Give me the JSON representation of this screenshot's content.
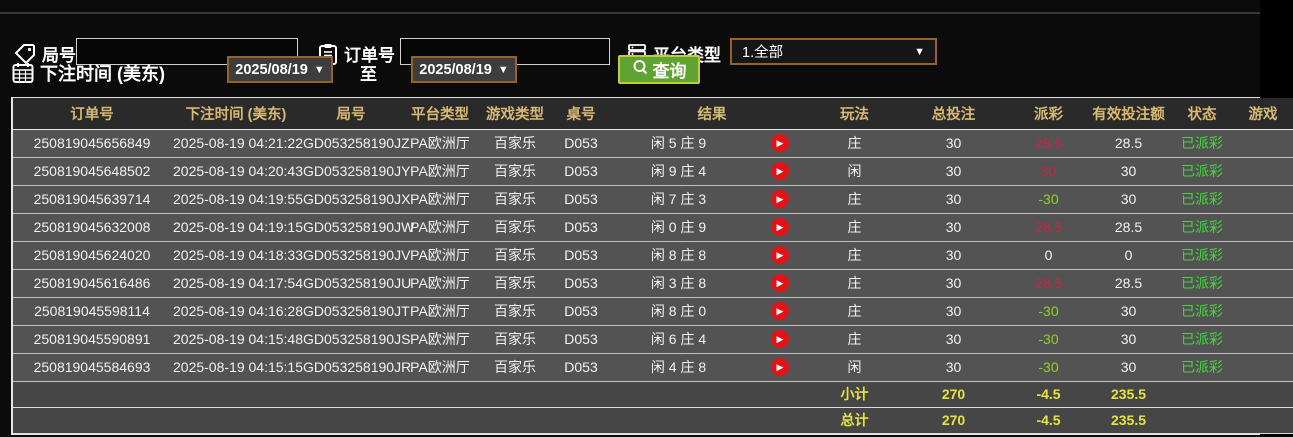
{
  "filters": {
    "game_no_label": "局号",
    "order_no_label": "订单号",
    "order_no_value": "",
    "game_no_value": "",
    "platform_label": "平台类型",
    "platform_value": "1.全部",
    "bet_time_label": "下注时间 (美东)",
    "date_from": "2025/08/19",
    "to_label": "至",
    "date_to": "2025/08/19",
    "query_label": "查询"
  },
  "table": {
    "headers": [
      "订单号",
      "下注时间 (美东)",
      "局号",
      "平台类型",
      "游戏类型",
      "桌号",
      "结果",
      "玩法",
      "总投注",
      "派彩",
      "有效投注额",
      "状态",
      "游戏"
    ],
    "rows": [
      {
        "order_no": "250819045656849",
        "bet_time": "2025-08-19 04:21:22",
        "game_no": "GD053258190JZ",
        "platform": "PA欧洲厅",
        "game_type": "百家乐",
        "table_no": "D053",
        "result": "闲 5 庄 9",
        "play": "庄",
        "total_bet": "30",
        "payout": "28.5",
        "valid_bet": "28.5",
        "status": "已派彩"
      },
      {
        "order_no": "250819045648502",
        "bet_time": "2025-08-19 04:20:43",
        "game_no": "GD053258190JY",
        "platform": "PA欧洲厅",
        "game_type": "百家乐",
        "table_no": "D053",
        "result": "闲 9 庄 4",
        "play": "闲",
        "total_bet": "30",
        "payout": "30",
        "valid_bet": "30",
        "status": "已派彩"
      },
      {
        "order_no": "250819045639714",
        "bet_time": "2025-08-19 04:19:55",
        "game_no": "GD053258190JX",
        "platform": "PA欧洲厅",
        "game_type": "百家乐",
        "table_no": "D053",
        "result": "闲 7 庄 3",
        "play": "庄",
        "total_bet": "30",
        "payout": "-30",
        "valid_bet": "30",
        "status": "已派彩"
      },
      {
        "order_no": "250819045632008",
        "bet_time": "2025-08-19 04:19:15",
        "game_no": "GD053258190JW",
        "platform": "PA欧洲厅",
        "game_type": "百家乐",
        "table_no": "D053",
        "result": "闲 0 庄 9",
        "play": "庄",
        "total_bet": "30",
        "payout": "28.5",
        "valid_bet": "28.5",
        "status": "已派彩"
      },
      {
        "order_no": "250819045624020",
        "bet_time": "2025-08-19 04:18:33",
        "game_no": "GD053258190JV",
        "platform": "PA欧洲厅",
        "game_type": "百家乐",
        "table_no": "D053",
        "result": "闲 8 庄 8",
        "play": "庄",
        "total_bet": "30",
        "payout": "0",
        "valid_bet": "0",
        "status": "已派彩"
      },
      {
        "order_no": "250819045616486",
        "bet_time": "2025-08-19 04:17:54",
        "game_no": "GD053258190JU",
        "platform": "PA欧洲厅",
        "game_type": "百家乐",
        "table_no": "D053",
        "result": "闲 3 庄 8",
        "play": "庄",
        "total_bet": "30",
        "payout": "28.5",
        "valid_bet": "28.5",
        "status": "已派彩"
      },
      {
        "order_no": "250819045598114",
        "bet_time": "2025-08-19 04:16:28",
        "game_no": "GD053258190JT",
        "platform": "PA欧洲厅",
        "game_type": "百家乐",
        "table_no": "D053",
        "result": "闲 8 庄 0",
        "play": "庄",
        "total_bet": "30",
        "payout": "-30",
        "valid_bet": "30",
        "status": "已派彩"
      },
      {
        "order_no": "250819045590891",
        "bet_time": "2025-08-19 04:15:48",
        "game_no": "GD053258190JS",
        "platform": "PA欧洲厅",
        "game_type": "百家乐",
        "table_no": "D053",
        "result": "闲 6 庄 4",
        "play": "庄",
        "total_bet": "30",
        "payout": "-30",
        "valid_bet": "30",
        "status": "已派彩"
      },
      {
        "order_no": "250819045584693",
        "bet_time": "2025-08-19 04:15:15",
        "game_no": "GD053258190JR",
        "platform": "PA欧洲厅",
        "game_type": "百家乐",
        "table_no": "D053",
        "result": "闲 4 庄 8",
        "play": "闲",
        "total_bet": "30",
        "payout": "-30",
        "valid_bet": "30",
        "status": "已派彩"
      }
    ],
    "subtotal": {
      "label": "小计",
      "total_bet": "270",
      "payout": "-4.5",
      "valid_bet": "235.5"
    },
    "total": {
      "label": "总计",
      "total_bet": "270",
      "payout": "-4.5",
      "valid_bet": "235.5"
    }
  },
  "colors": {
    "header_gold": "#d8b974",
    "row_bg": "#535353",
    "summary_yellow": "#e8e53a",
    "status_green": "#3ed83e",
    "payout_positive_red": "#bf2847",
    "payout_negative_green": "#8ed12f",
    "query_button_green": "#5fa332",
    "select_border_orange": "#96622a",
    "play_icon_red": "#e31219"
  }
}
